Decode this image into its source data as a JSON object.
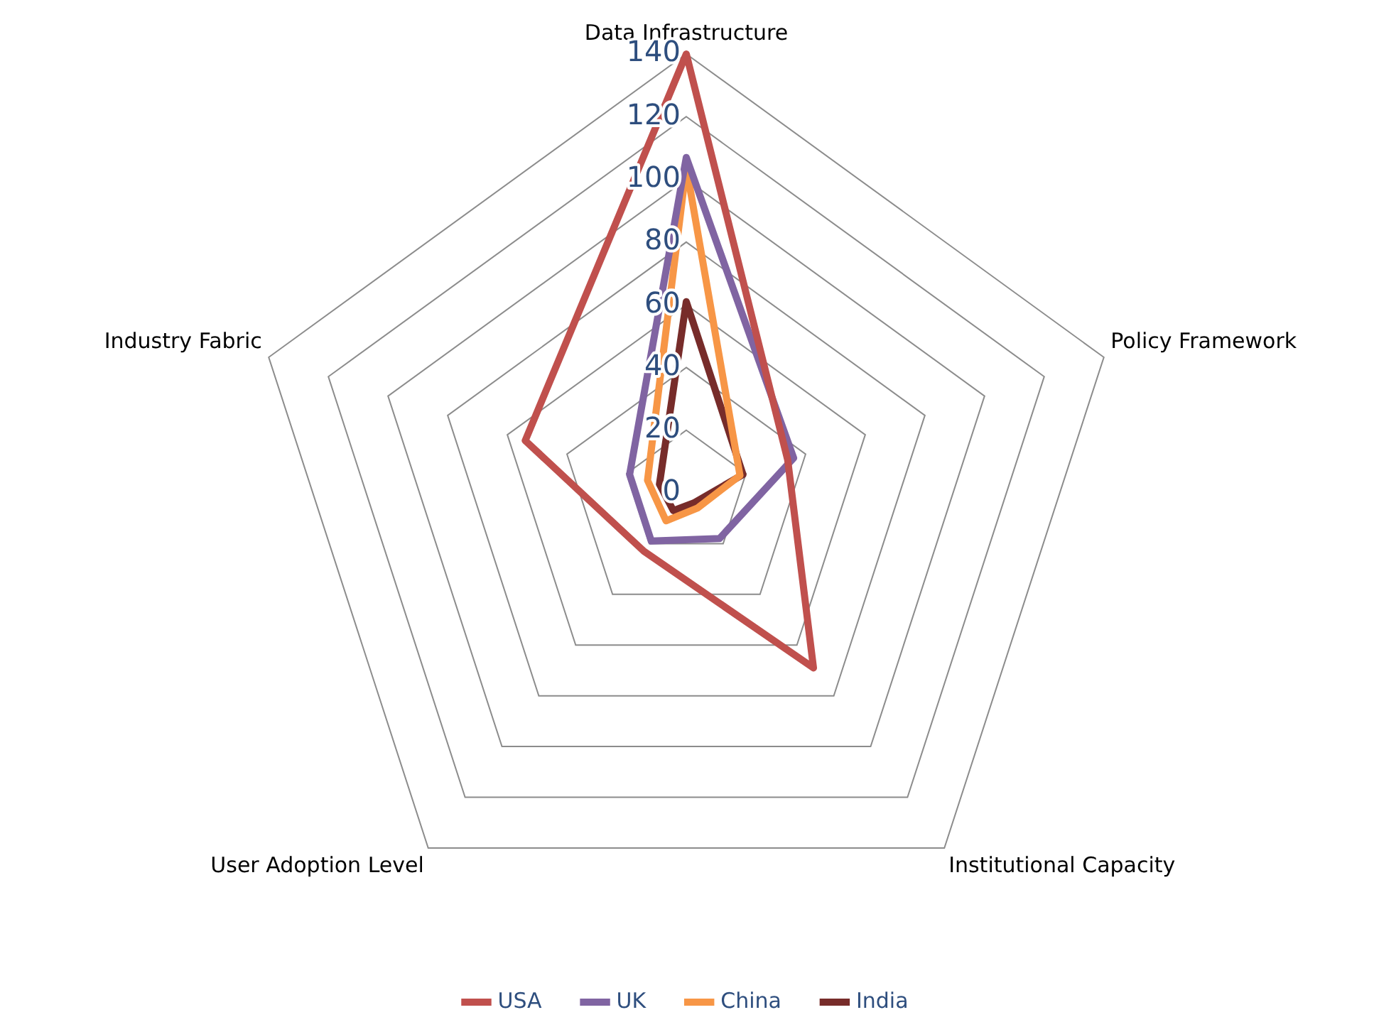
{
  "chart_data": {
    "type": "radar",
    "categories": [
      "Data Infrastructure",
      "Policy Framework",
      "Institutional Capacity",
      "User Adoption Level",
      "Industry Fabric"
    ],
    "series": [
      {
        "name": "USA",
        "color": "#c0504d",
        "values": [
          140,
          34,
          69,
          23,
          54
        ]
      },
      {
        "name": "UK",
        "color": "#8064a2",
        "values": [
          107,
          36,
          18,
          19,
          19
        ]
      },
      {
        "name": "China",
        "color": "#f79646",
        "values": [
          104,
          18,
          6,
          11,
          13
        ]
      },
      {
        "name": "India",
        "color": "#772c2a",
        "values": [
          61,
          19,
          4,
          7,
          9
        ]
      }
    ],
    "ylim": [
      0,
      140
    ],
    "yticks": [
      0,
      20,
      40,
      60,
      80,
      100,
      120,
      140
    ],
    "grid": true,
    "legend": "bottom",
    "marker": "none",
    "line_style": "solid"
  }
}
